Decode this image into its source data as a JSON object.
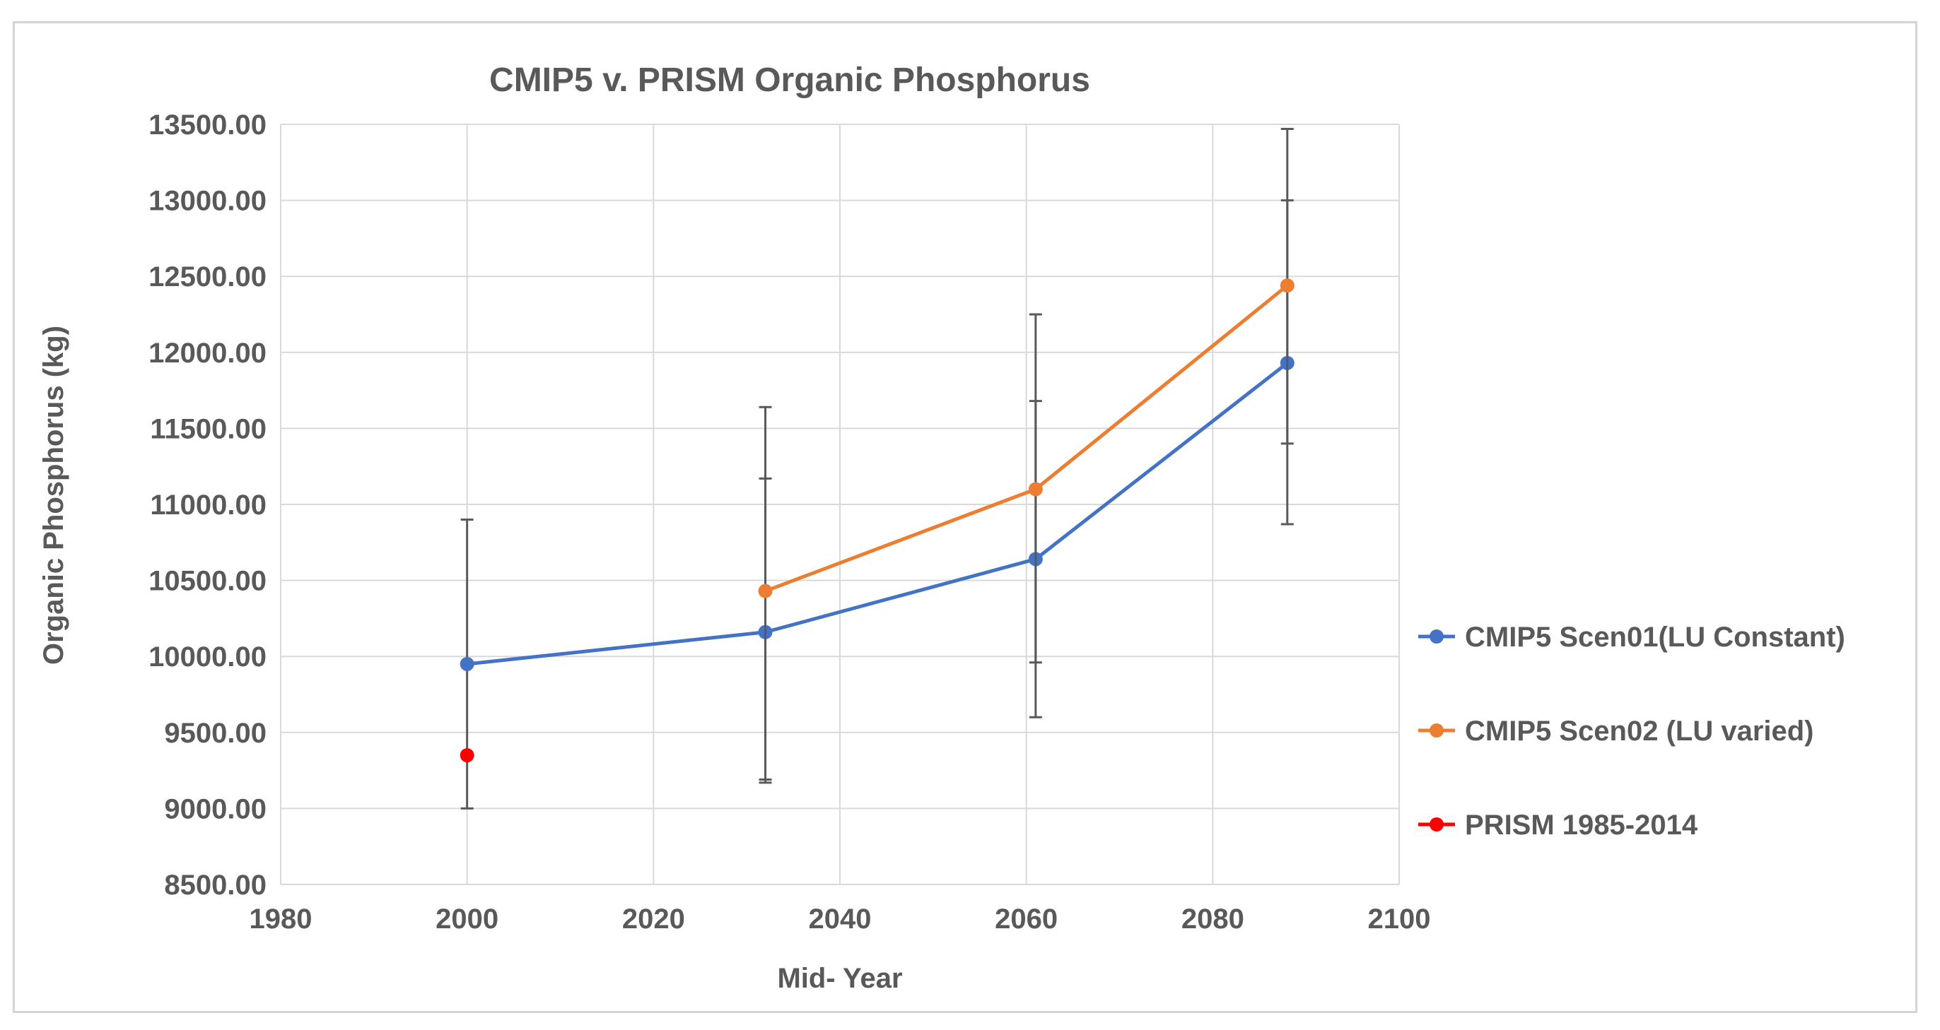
{
  "chart_data": {
    "type": "line",
    "title": "CMIP5 v. PRISM Organic Phosphorus",
    "xlabel": "Mid- Year",
    "ylabel": "Organic Phosphorus (kg)",
    "xlim": [
      1980,
      2100
    ],
    "ylim": [
      8500,
      13500
    ],
    "x_ticks": [
      1980,
      2000,
      2020,
      2040,
      2060,
      2080,
      2100
    ],
    "x_tick_labels": [
      "1980",
      "2000",
      "2020",
      "2040",
      "2060",
      "2080",
      "2100"
    ],
    "y_ticks": [
      8500,
      9000,
      9500,
      10000,
      10500,
      11000,
      11500,
      12000,
      12500,
      13000,
      13500
    ],
    "y_tick_labels": [
      "8500.00",
      "9000.00",
      "9500.00",
      "10000.00",
      "10500.00",
      "11000.00",
      "11500.00",
      "12000.00",
      "12500.00",
      "13000.00",
      "13500.00"
    ],
    "grid": true,
    "legend_position": "right",
    "series": [
      {
        "name": "CMIP5 Scen01(LU Constant)",
        "color": "#4472C4",
        "points": [
          {
            "x": 2000,
            "y": 9950,
            "err_low": 9000,
            "err_high": 10900
          },
          {
            "x": 2032,
            "y": 10160,
            "err_low": 9170,
            "err_high": 11170
          },
          {
            "x": 2061,
            "y": 10640,
            "err_low": 9600,
            "err_high": 11680
          },
          {
            "x": 2088,
            "y": 11930,
            "err_low": 10870,
            "err_high": 13000
          }
        ]
      },
      {
        "name": "CMIP5 Scen02 (LU varied)",
        "color": "#ED7D31",
        "points": [
          {
            "x": 2032,
            "y": 10430,
            "err_low": 9190,
            "err_high": 11640
          },
          {
            "x": 2061,
            "y": 11100,
            "err_low": 9960,
            "err_high": 12250
          },
          {
            "x": 2088,
            "y": 12440,
            "err_low": 11400,
            "err_high": 13470
          }
        ]
      },
      {
        "name": "PRISM 1985-2014",
        "color": "#FF0000",
        "points": [
          {
            "x": 2000,
            "y": 9350
          }
        ]
      }
    ]
  }
}
